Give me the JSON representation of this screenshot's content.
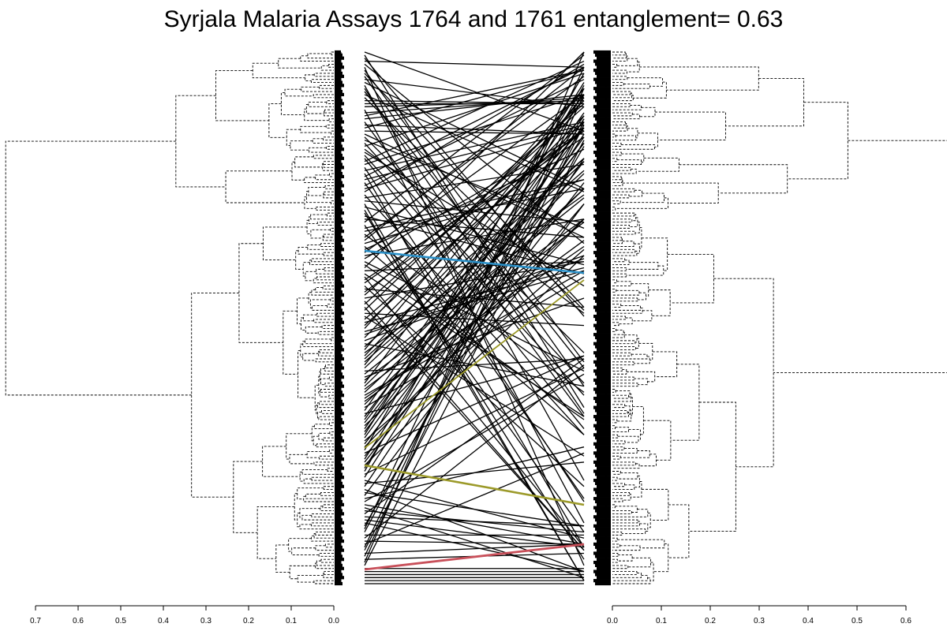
{
  "chart_data": {
    "type": "tanglegram",
    "title": "Syrjala Malaria Assays 1764 and 1761 entanglement= 0.63",
    "entanglement": 0.63,
    "left_axis": {
      "ticks": [
        0.7,
        0.6,
        0.5,
        0.4,
        0.3,
        0.2,
        0.1,
        0.0
      ],
      "range": [
        0.7,
        0.0
      ]
    },
    "right_axis": {
      "ticks": [
        0.0,
        0.1,
        0.2,
        0.3,
        0.4,
        0.5,
        0.6
      ],
      "range": [
        0.0,
        0.6
      ]
    },
    "leaf_count": 176,
    "line_style": {
      "branches": "dashed",
      "connectors": "solid"
    },
    "highlight_colors": {
      "default": "#000000",
      "blue": "#2a90c8",
      "olive": "#9c9a2a",
      "red": "#c8505a"
    }
  }
}
